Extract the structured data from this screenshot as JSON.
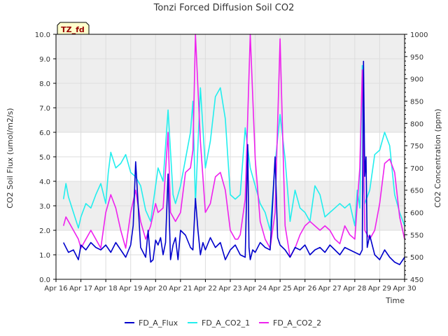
{
  "chart_data": {
    "type": "line",
    "title": "Tonzi Forced Diffusion Soil CO2",
    "site_label": "TZ_fd",
    "xlabel": "Time",
    "ylabel_left": "CO2 Soil Flux (umol/m2/s)",
    "ylabel_right": "CO2 Concentration (ppm)",
    "xlim": [
      0,
      14
    ],
    "ylim_left": [
      0,
      10
    ],
    "ylim_right": [
      450,
      1000
    ],
    "x_tick_labels": [
      "Apr 16",
      "Apr 17",
      "Apr 18",
      "Apr 19",
      "Apr 20",
      "Apr 21",
      "Apr 22",
      "Apr 23",
      "Apr 24",
      "Apr 25",
      "Apr 26",
      "Apr 27",
      "Apr 28",
      "Apr 29",
      "Apr 30"
    ],
    "y_left_ticks": [
      "0.0",
      "1.0",
      "2.0",
      "3.0",
      "4.0",
      "5.0",
      "6.0",
      "7.0",
      "8.0",
      "9.0",
      "10.0"
    ],
    "y_right_ticks": [
      "450",
      "500",
      "550",
      "600",
      "650",
      "700",
      "750",
      "800",
      "850",
      "900",
      "950",
      "1000"
    ],
    "grid": true,
    "legend_position": "bottom-center",
    "colors": {
      "FD_A_Flux": "#0000cc",
      "FD_A_CO2_1": "#22eeee",
      "FD_A_CO2_2": "#ee22ee",
      "band": "#eeeeee"
    },
    "series": [
      {
        "name": "FD_A_Flux",
        "axis": "left",
        "x": [
          0.3,
          0.4,
          0.5,
          0.7,
          0.9,
          1.0,
          1.2,
          1.4,
          1.6,
          1.8,
          2.0,
          2.2,
          2.4,
          2.6,
          2.8,
          3.0,
          3.1,
          3.2,
          3.4,
          3.6,
          3.7,
          3.8,
          3.9,
          4.0,
          4.1,
          4.2,
          4.3,
          4.4,
          4.5,
          4.6,
          4.7,
          4.8,
          4.9,
          5.0,
          5.2,
          5.4,
          5.5,
          5.6,
          5.7,
          5.8,
          5.9,
          6.0,
          6.2,
          6.4,
          6.6,
          6.8,
          7.0,
          7.2,
          7.4,
          7.6,
          7.7,
          7.75,
          7.8,
          7.9,
          8.0,
          8.2,
          8.4,
          8.6,
          8.8,
          8.9,
          9.0,
          9.2,
          9.4,
          9.6,
          9.8,
          10.0,
          10.2,
          10.4,
          10.6,
          10.8,
          11.0,
          11.2,
          11.4,
          11.6,
          11.8,
          12.0,
          12.2,
          12.3,
          12.35,
          12.4,
          12.45,
          12.5,
          12.6,
          12.8,
          13.0,
          13.2,
          13.4,
          13.6,
          13.8,
          14.0
        ],
        "y": [
          1.5,
          1.3,
          1.1,
          1.2,
          0.8,
          1.4,
          1.2,
          1.5,
          1.3,
          1.2,
          1.4,
          1.1,
          1.5,
          1.2,
          0.9,
          1.4,
          2.2,
          4.8,
          1.3,
          0.9,
          2.0,
          0.7,
          0.8,
          1.6,
          1.4,
          1.7,
          1.0,
          1.5,
          4.3,
          0.8,
          1.4,
          1.7,
          0.8,
          2.0,
          1.8,
          1.3,
          1.2,
          3.3,
          2.0,
          1.0,
          1.5,
          1.2,
          1.7,
          1.3,
          1.5,
          0.8,
          1.2,
          1.4,
          1.0,
          0.9,
          5.5,
          1.3,
          0.8,
          1.2,
          1.1,
          1.5,
          1.3,
          1.2,
          5.0,
          1.7,
          1.4,
          1.2,
          0.9,
          1.3,
          1.2,
          1.4,
          1.0,
          1.2,
          1.3,
          1.1,
          1.4,
          1.2,
          1.0,
          1.3,
          1.2,
          1.1,
          1.0,
          1.2,
          8.9,
          4.2,
          5.0,
          1.3,
          1.8,
          1.0,
          0.8,
          1.2,
          0.9,
          0.7,
          0.6,
          0.9
        ]
      },
      {
        "name": "FD_A_CO2_1",
        "axis": "right",
        "x": [
          0.3,
          0.4,
          0.5,
          0.7,
          0.9,
          1.0,
          1.2,
          1.4,
          1.6,
          1.8,
          2.0,
          2.1,
          2.2,
          2.4,
          2.6,
          2.8,
          3.0,
          3.2,
          3.4,
          3.6,
          3.8,
          4.0,
          4.1,
          4.3,
          4.5,
          4.7,
          4.8,
          5.0,
          5.2,
          5.4,
          5.5,
          5.6,
          5.8,
          6.0,
          6.2,
          6.4,
          6.6,
          6.8,
          7.0,
          7.2,
          7.4,
          7.6,
          7.8,
          8.0,
          8.2,
          8.4,
          8.6,
          8.8,
          9.0,
          9.2,
          9.4,
          9.6,
          9.8,
          10.0,
          10.2,
          10.4,
          10.6,
          10.8,
          11.0,
          11.2,
          11.4,
          11.6,
          11.8,
          12.0,
          12.1,
          12.2,
          12.3,
          12.35,
          12.4,
          12.6,
          12.8,
          13.0,
          13.2,
          13.4,
          13.6,
          13.8,
          14.0
        ],
        "y": [
          630,
          665,
          635,
          600,
          565,
          590,
          620,
          610,
          640,
          665,
          620,
          690,
          735,
          700,
          710,
          730,
          690,
          680,
          660,
          605,
          580,
          660,
          700,
          670,
          830,
          640,
          620,
          660,
          720,
          780,
          850,
          620,
          880,
          700,
          760,
          860,
          880,
          810,
          640,
          630,
          640,
          790,
          700,
          660,
          620,
          600,
          560,
          710,
          820,
          720,
          580,
          650,
          610,
          600,
          580,
          660,
          640,
          590,
          600,
          610,
          620,
          610,
          620,
          570,
          650,
          610,
          930,
          660,
          620,
          650,
          730,
          740,
          780,
          750,
          640,
          600,
          570
        ]
      },
      {
        "name": "FD_A_CO2_2",
        "axis": "right",
        "x": [
          0.3,
          0.4,
          0.5,
          0.7,
          0.9,
          1.0,
          1.2,
          1.4,
          1.6,
          1.8,
          2.0,
          2.2,
          2.4,
          2.6,
          2.8,
          3.0,
          3.2,
          3.4,
          3.6,
          3.8,
          4.0,
          4.1,
          4.3,
          4.5,
          4.6,
          4.8,
          5.0,
          5.2,
          5.4,
          5.5,
          5.6,
          5.8,
          6.0,
          6.2,
          6.4,
          6.6,
          6.8,
          7.0,
          7.2,
          7.3,
          7.4,
          7.6,
          7.8,
          8.0,
          8.2,
          8.4,
          8.6,
          8.8,
          9.0,
          9.2,
          9.4,
          9.6,
          9.8,
          10.0,
          10.2,
          10.4,
          10.6,
          10.8,
          11.0,
          11.2,
          11.4,
          11.6,
          11.8,
          12.0,
          12.1,
          12.2,
          12.3,
          12.4,
          12.6,
          12.8,
          13.0,
          13.2,
          13.4,
          13.6,
          13.8,
          14.0
        ],
        "y": [
          570,
          590,
          580,
          560,
          540,
          520,
          540,
          560,
          540,
          520,
          600,
          640,
          610,
          560,
          520,
          600,
          650,
          580,
          540,
          570,
          620,
          600,
          610,
          780,
          600,
          580,
          600,
          690,
          700,
          740,
          1000,
          760,
          600,
          620,
          680,
          690,
          650,
          560,
          540,
          540,
          550,
          630,
          1000,
          720,
          580,
          540,
          520,
          600,
          990,
          570,
          500,
          520,
          550,
          570,
          580,
          570,
          560,
          570,
          560,
          540,
          530,
          570,
          550,
          540,
          620,
          700,
          920,
          560,
          540,
          560,
          620,
          710,
          720,
          690,
          590,
          540
        ]
      }
    ]
  }
}
